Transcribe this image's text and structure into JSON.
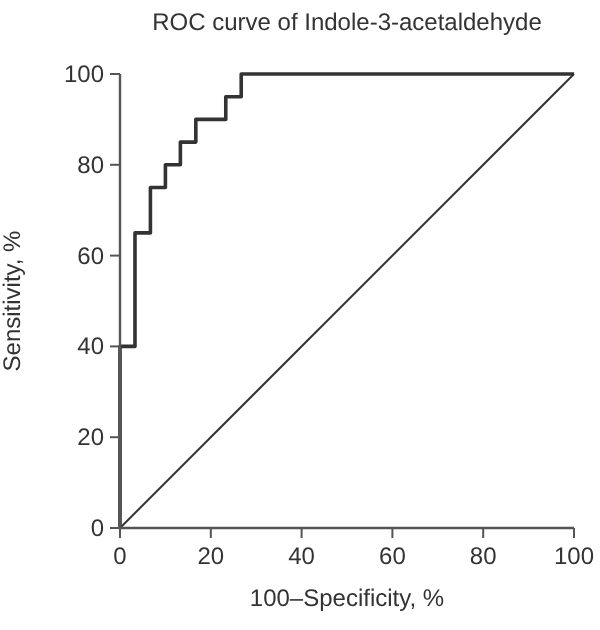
{
  "chart_data": {
    "type": "line",
    "title": "ROC curve of Indole-3-acetaldehyde",
    "xlabel": "100–Specificity, %",
    "ylabel": "Sensitivity, %",
    "series": [
      {
        "type": "step",
        "color": "#333333",
        "x": [
          0,
          0,
          3.3,
          6.7,
          10,
          13.3,
          16.7,
          23.3,
          26.7,
          100
        ],
        "values": [
          0,
          40,
          65,
          75,
          80,
          85,
          90,
          95,
          100,
          100
        ]
      },
      {
        "color": "#333333",
        "x": [
          0,
          100
        ],
        "values": [
          0,
          100
        ]
      }
    ],
    "xlim": [
      0,
      100
    ],
    "ylim": [
      0,
      100
    ],
    "xticks": [
      0,
      20,
      40,
      60,
      80,
      100
    ],
    "yticks": [
      0,
      20,
      40,
      60,
      80,
      100
    ],
    "grid": false,
    "marker": "none",
    "line_style": "solid"
  }
}
